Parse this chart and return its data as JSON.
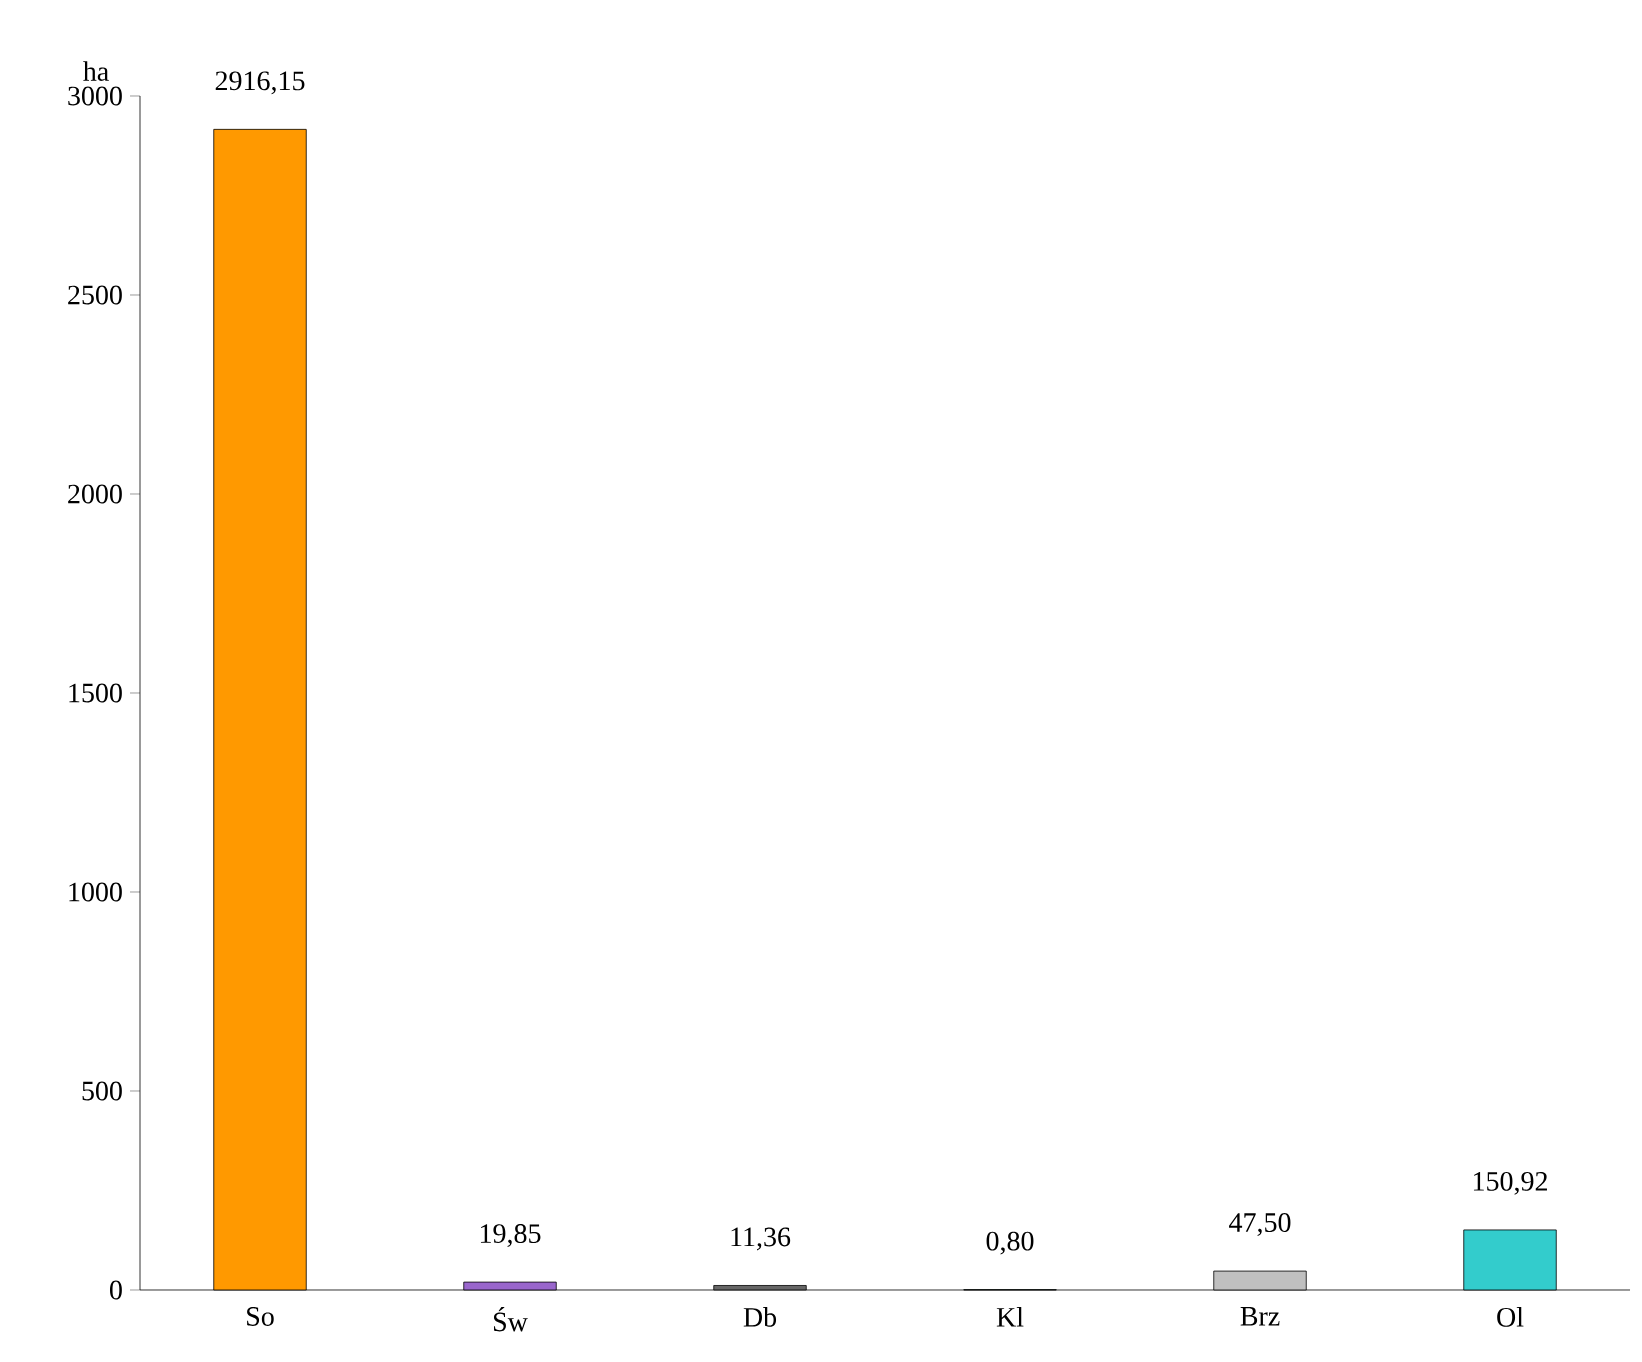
{
  "chart_data": {
    "type": "bar",
    "ylabel": "ha",
    "categories": [
      "So",
      "Św",
      "Db",
      "Kl",
      "Brz",
      "Ol"
    ],
    "values": [
      2916.15,
      19.85,
      11.36,
      0.8,
      47.5,
      150.92
    ],
    "value_labels": [
      "2916,15",
      "19,85",
      "11,36",
      "0,80",
      "47,50",
      "150,92"
    ],
    "colors": [
      "#ff9900",
      "#9966cc",
      "#666666",
      "#006633",
      "#c0c0c0",
      "#33cccc"
    ],
    "ylim": [
      0,
      3000
    ],
    "yticks": [
      0,
      500,
      1000,
      1500,
      2000,
      2500,
      3000
    ],
    "grid": false
  }
}
